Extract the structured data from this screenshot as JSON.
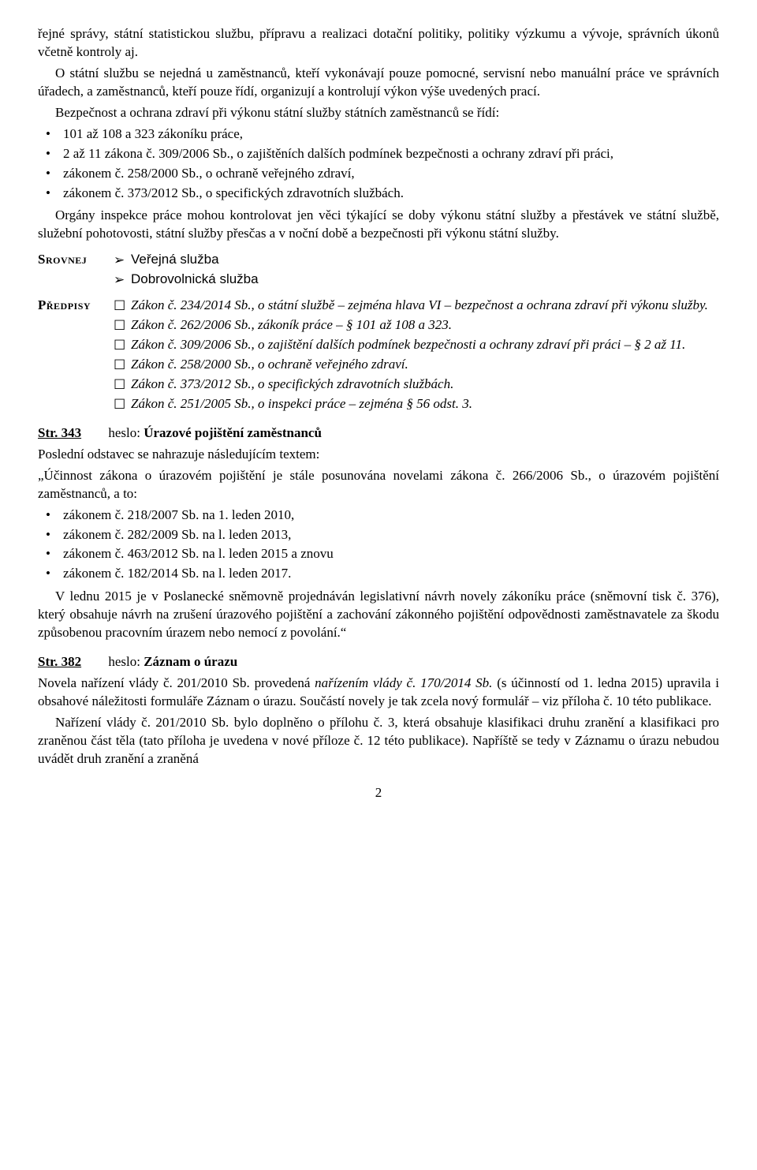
{
  "intro_p1": "řejné správy, státní statistickou službu, přípravu a realizaci dotační politiky, politiky výzkumu a vývoje, správních úkonů včetně kontroly aj.",
  "intro_p2": "O státní službu se nejedná u zaměstnanců, kteří vykonávají pouze pomocné, servisní nebo manuální práce ve správních úřadech, a zaměstnanců, kteří pouze řídí, organizují a kontrolují výkon výše uvedených prací.",
  "intro_p3": "Bezpečnost a ochrana zdraví při výkonu státní služby státních zaměstnanců se řídí:",
  "bullets1": {
    "b1": "101 až 108 a 323 zákoníku práce,",
    "b2": "2 až 11 zákona č. 309/2006 Sb., o zajištěních dalších podmínek bezpečnosti a ochrany zdraví při práci,",
    "b3": "zákonem č. 258/2000 Sb., o ochraně veřejného zdraví,",
    "b4": "zákonem č. 373/2012 Sb., o specifických zdravotních službách."
  },
  "intro_p4": "Orgány inspekce práce mohou kontrolovat jen věci týkající se doby výkonu státní služby a přestávek ve státní službě, služební pohotovosti, státní služby přesčas a v noční době a bezpečnosti při výkonu státní služby.",
  "srovnej_label": "Srovnej",
  "srovnej": {
    "s1": "Veřejná služba",
    "s2": "Dobrovolnická služba"
  },
  "predpisy_label": "Předpisy",
  "predpisy": {
    "p1": "Zákon č. 234/2014 Sb., o státní službě – zejména hlava VI – bezpečnost a ochrana zdraví při výkonu služby.",
    "p2": "Zákon č. 262/2006 Sb., zákoník práce – § 101 až 108 a 323.",
    "p3": "Zákon č. 309/2006 Sb., o zajištění dalších podmínek bezpečnosti a ochrany zdraví při práci – § 2 až 11.",
    "p4": "Zákon č. 258/2000 Sb., o ochraně veřejného zdraví.",
    "p5": "Zákon č. 373/2012 Sb., o specifických zdravotních službách.",
    "p6": "Zákon č. 251/2005 Sb., o inspekci práce – zejména § 56 odst. 3."
  },
  "entry343": {
    "str": "Str. 343",
    "heslo_label": "heslo: ",
    "heslo": "Úrazové pojištění zaměstnanců",
    "p1": "Poslední odstavec se nahrazuje následujícím textem:",
    "p2": "„Účinnost zákona o úrazovém pojištění je stále posunována novelami zákona č. 266/2006 Sb., o úrazovém pojištění zaměstnanců, a to:",
    "list": {
      "l1": "zákonem č. 218/2007 Sb. na 1. leden 2010,",
      "l2": "zákonem č. 282/2009 Sb. na l. leden 2013,",
      "l3": "zákonem č. 463/2012 Sb. na l. leden 2015 a znovu",
      "l4": "zákonem č. 182/2014 Sb. na l. leden 2017."
    },
    "p3": "V lednu 2015 je v Poslanecké sněmovně projednáván legislativní návrh novely zákoníku práce (sněmovní tisk č. 376), který obsahuje návrh na zrušení úrazového pojištění a zachování zákonného pojištění odpovědnosti zaměstnavatele za škodu způsobenou pracovním úrazem nebo nemocí z povolání.“"
  },
  "entry382": {
    "str": "Str. 382",
    "heslo_label": "heslo: ",
    "heslo": "Záznam o úrazu",
    "p1a": "Novela nařízení vlády č. 201/2010 Sb. provedená ",
    "p1b": "nařízením vlády č. 170/2014 Sb.",
    "p1c": " (s účinností od 1. ledna 2015) upravila i obsahové náležitosti formuláře Záznam o úrazu. Součástí novely je tak zcela nový formulář – viz příloha č. 10 této publikace.",
    "p2": "Nařízení vlády č. 201/2010 Sb. bylo doplněno o přílohu č. 3, která obsahuje klasifikaci druhu zranění a klasifikaci pro zraněnou část těla (tato příloha je uvedena v nové příloze č. 12 této publikace). Napříště se tedy v Záznamu o úrazu nebudou uvádět druh zranění a zraněná"
  },
  "page_num": "2"
}
